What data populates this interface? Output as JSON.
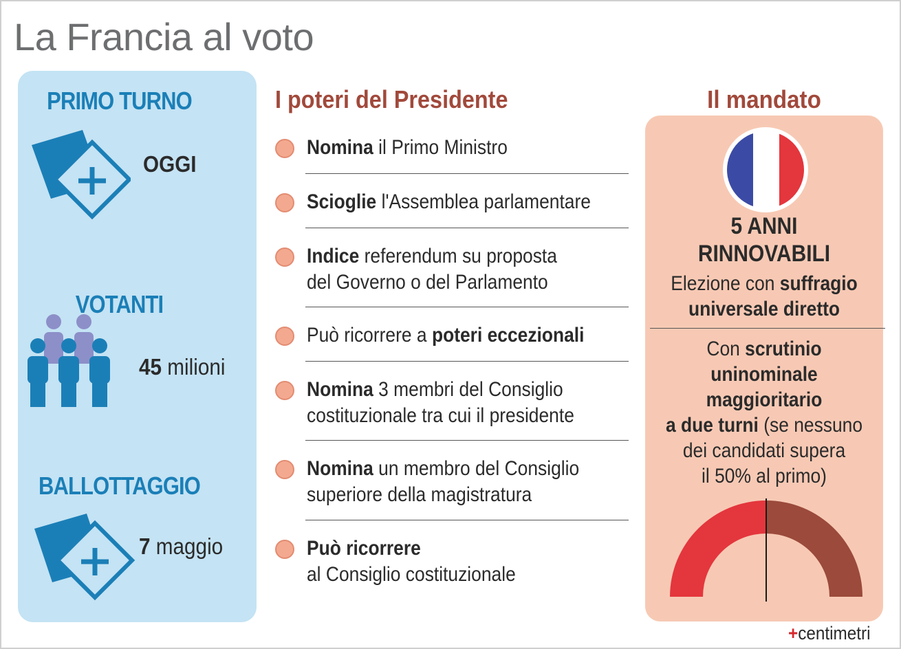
{
  "title": "La Francia al voto",
  "left_panel": {
    "primo_turno": {
      "heading": "PRIMO TURNO",
      "value": "OGGI"
    },
    "votanti": {
      "heading": "VOTANTI",
      "value_bold": "45",
      "value_rest": " milioni"
    },
    "ballottaggio": {
      "heading": "BALLOTTAGGIO",
      "value_bold": "7",
      "value_rest": " maggio"
    }
  },
  "powers": {
    "title": "I poteri del Presidente",
    "items": [
      {
        "bold": "Nomina",
        "rest": " il Primo Ministro",
        "line2": ""
      },
      {
        "bold": "Scioglie",
        "rest": " l'Assemblea parlamentare",
        "line2": ""
      },
      {
        "bold": "Indice",
        "rest": " referendum su proposta",
        "line2": "del Governo o del Parlamento"
      },
      {
        "pre": "Può ricorrere a ",
        "bold": "poteri eccezionali",
        "rest": "",
        "line2": ""
      },
      {
        "bold": "Nomina",
        "rest": " 3 membri del Consiglio",
        "line2": "costituzionale tra cui il presidente"
      },
      {
        "bold": "Nomina",
        "rest": " un membro del Consiglio",
        "line2": "superiore della magistratura"
      },
      {
        "bold": "Può ricorrere",
        "rest": "",
        "line2": "al Consiglio costituzionale"
      }
    ]
  },
  "mandate": {
    "title": "Il mandato",
    "years": "5 ANNI",
    "renewable": "RINNOVABILI",
    "election_pre": "Elezione con ",
    "election_bold1": "suffragio",
    "election_bold2": "universale diretto",
    "system_pre": "Con ",
    "system_bold1": "scrutinio",
    "system_bold2": "uninominale",
    "system_bold3": "maggioritario",
    "system_bold4": "a due turni",
    "system_rest1": " (se nessuno",
    "system_rest2": "dei candidati supera",
    "system_rest3": "il 50% al primo)",
    "threshold_percent": 50
  },
  "colors": {
    "blue": "#1b7fb7",
    "light_blue": "#c4e3f4",
    "brown": "#a1493b",
    "salmon": "#f7c9b4",
    "red": "#e4363d",
    "dark_red": "#9b4a3b",
    "people_back": "#8d8fc8"
  },
  "brand": {
    "mark": "+",
    "name": "centimetri"
  }
}
